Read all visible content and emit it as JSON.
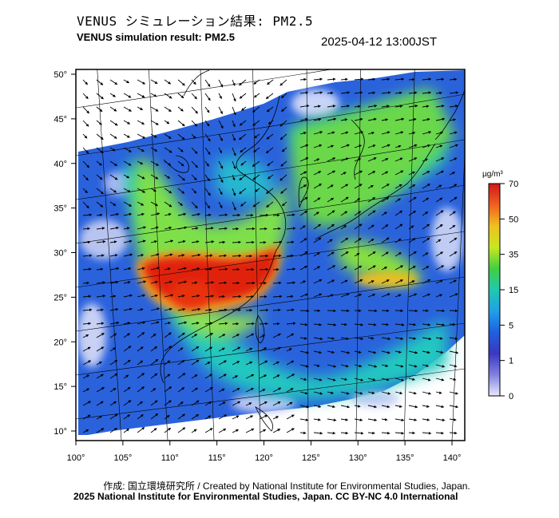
{
  "header": {
    "title_jp": "VENUS シミュレーション結果: PM2.5",
    "title_en": "VENUS simulation result: PM2.5",
    "timestamp": "2025-04-12 13:00JST"
  },
  "map": {
    "variable": "PM2.5",
    "latitude_labels": [
      "50°",
      "45°",
      "40°",
      "35°",
      "30°",
      "25°",
      "20°",
      "15°",
      "10°"
    ],
    "longitude_labels": [
      "100°",
      "105°",
      "110°",
      "115°",
      "120°",
      "125°",
      "130°",
      "135°",
      "140°"
    ],
    "lat_range": [
      9,
      51
    ],
    "lon_range": [
      100,
      142
    ],
    "graticule": true,
    "wind_vectors": true,
    "colors": {
      "extreme": "#e02010",
      "high": "#f0a020",
      "moderate": "#8ee04a",
      "low": "#22c8b0",
      "background": "#2a60e0",
      "clean": "#b0b8f0"
    }
  },
  "colorbar": {
    "unit": "µg/m³",
    "ticks": [
      "70",
      "50",
      "35",
      "15",
      "5",
      "1",
      "0"
    ],
    "gradient": [
      "#d01818",
      "#f06020",
      "#f0c020",
      "#c8e820",
      "#40d040",
      "#20c8b0",
      "#20a0e8",
      "#2060e0",
      "#3a38c0",
      "#8080e0",
      "#e8e8ff"
    ]
  },
  "footer": {
    "credit": "作成: 国立環境研究所 / Created by National Institute for Environmental Studies, Japan.",
    "license": "2025 National Institute for Environmental Studies, Japan. CC BY-NC 4.0 International"
  }
}
